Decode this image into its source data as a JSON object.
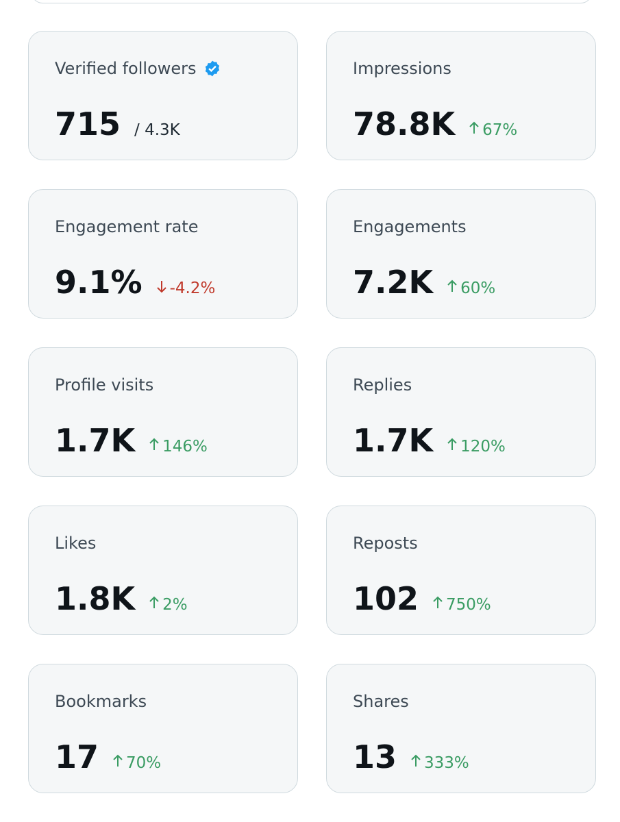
{
  "cards": [
    {
      "label": "Verified followers",
      "verified": true,
      "value": "715",
      "total": "/ 4.3K"
    },
    {
      "label": "Impressions",
      "value": "78.8K",
      "trend": "up",
      "change": "67%"
    },
    {
      "label": "Engagement rate",
      "value": "9.1%",
      "trend": "down",
      "change": "-4.2%"
    },
    {
      "label": "Engagements",
      "value": "7.2K",
      "trend": "up",
      "change": "60%"
    },
    {
      "label": "Profile visits",
      "value": "1.7K",
      "trend": "up",
      "change": "146%"
    },
    {
      "label": "Replies",
      "value": "1.7K",
      "trend": "up",
      "change": "120%"
    },
    {
      "label": "Likes",
      "value": "1.8K",
      "trend": "up",
      "change": "2%"
    },
    {
      "label": "Reposts",
      "value": "102",
      "trend": "up",
      "change": "750%"
    },
    {
      "label": "Bookmarks",
      "value": "17",
      "trend": "up",
      "change": "70%"
    },
    {
      "label": "Shares",
      "value": "13",
      "trend": "up",
      "change": "333%"
    }
  ]
}
